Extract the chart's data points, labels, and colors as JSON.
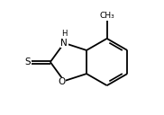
{
  "bg_color": "#ffffff",
  "bond_color": "#000000",
  "text_color": "#000000",
  "bond_width": 1.3,
  "font_size": 7.5,
  "figsize": [
    1.82,
    1.28
  ],
  "dpi": 100,
  "xlim": [
    -0.75,
    0.65
  ],
  "ylim": [
    -0.58,
    0.68
  ]
}
